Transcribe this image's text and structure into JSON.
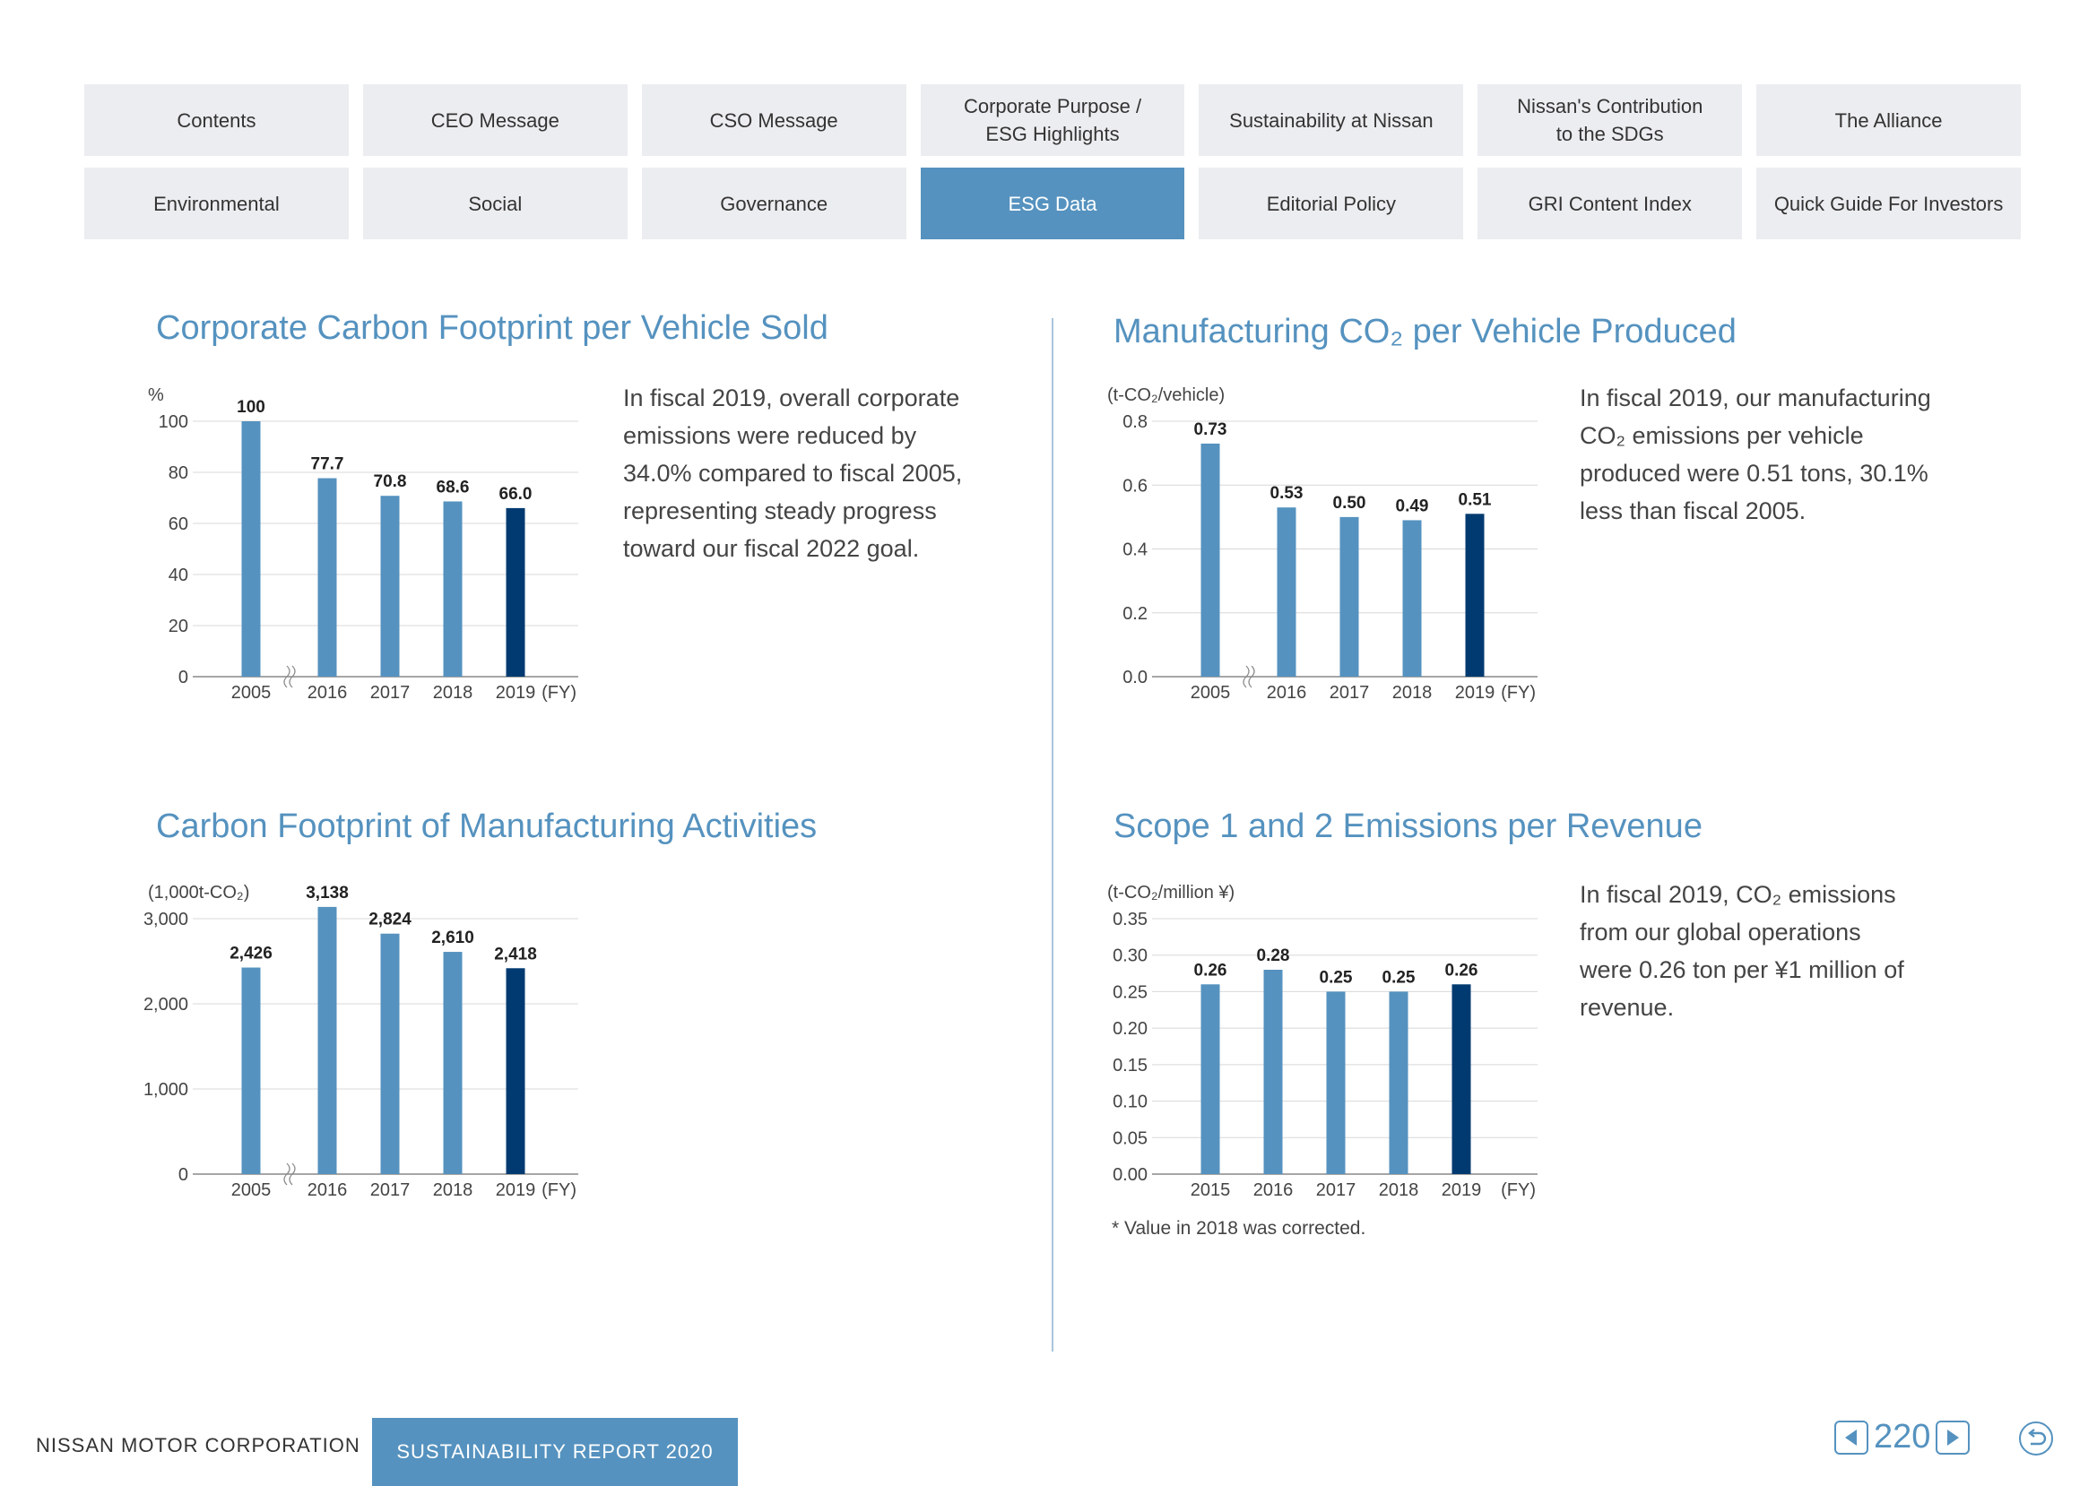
{
  "nav": {
    "row1": [
      "Contents",
      "CEO Message",
      "CSO Message",
      "Corporate Purpose /\nESG Highlights",
      "Sustainability at Nissan",
      "Nissan's Contribution\nto the SDGs",
      "The Alliance"
    ],
    "row2": [
      "Environmental",
      "Social",
      "Governance",
      "ESG Data",
      "Editorial Policy",
      "GRI Content Index",
      "Quick Guide For Investors"
    ],
    "active": "ESG Data"
  },
  "sections": {
    "s1": {
      "title": "Corporate Carbon Footprint per Vehicle Sold",
      "description": "In fiscal 2019, overall corporate\nemissions were reduced by\n34.0% compared to fiscal 2005,\nrepresenting steady progress\ntoward our fiscal 2022 goal."
    },
    "s2": {
      "title": "Manufacturing CO₂ per Vehicle Produced",
      "description": "In fiscal 2019, our manufacturing\nCO₂ emissions per vehicle\nproduced were 0.51 tons, 30.1%\nless than fiscal 2005."
    },
    "s3": {
      "title": "Carbon Footprint of Manufacturing Activities"
    },
    "s4": {
      "title": "Scope 1 and 2 Emissions per Revenue",
      "description": "In fiscal 2019, CO₂ emissions\nfrom our global operations\nwere 0.26 ton per ¥1 million of\nrevenue.",
      "footnote": "* Value in 2018 was corrected."
    }
  },
  "chart_data": [
    {
      "type": "bar",
      "unit": "%",
      "categories": [
        "2005",
        "2016",
        "2017",
        "2018",
        "2019"
      ],
      "values": [
        100,
        77.7,
        70.8,
        68.6,
        66.0
      ],
      "labels": [
        "100",
        "77.7",
        "70.8",
        "68.6",
        "66.0"
      ],
      "yticks": [
        "0",
        "20",
        "40",
        "60",
        "80",
        "100"
      ],
      "ylim": [
        0,
        100
      ],
      "xsuffix": "(FY)",
      "axis_break": true
    },
    {
      "type": "bar",
      "unit": "(t-CO₂/vehicle)",
      "categories": [
        "2005",
        "2016",
        "2017",
        "2018",
        "2019"
      ],
      "values": [
        0.73,
        0.53,
        0.5,
        0.49,
        0.51
      ],
      "labels": [
        "0.73",
        "0.53",
        "0.50",
        "0.49",
        "0.51"
      ],
      "yticks": [
        "0.0",
        "0.2",
        "0.4",
        "0.6",
        "0.8"
      ],
      "ylim": [
        0,
        0.8
      ],
      "xsuffix": "(FY)",
      "axis_break": true
    },
    {
      "type": "bar",
      "unit": "(1,000t-CO₂)",
      "categories": [
        "2005",
        "2016",
        "2017",
        "2018",
        "2019"
      ],
      "values": [
        2426,
        3138,
        2824,
        2610,
        2418
      ],
      "labels": [
        "2,426",
        "3,138",
        "2,824",
        "2,610",
        "2,418"
      ],
      "yticks": [
        "0",
        "1,000",
        "2,000",
        "3,000"
      ],
      "ylim": [
        0,
        3000
      ],
      "xsuffix": "(FY)",
      "axis_break": true
    },
    {
      "type": "bar",
      "unit": "(t-CO₂/million ¥)",
      "categories": [
        "2015",
        "2016",
        "2017",
        "2018",
        "2019"
      ],
      "values": [
        0.26,
        0.28,
        0.25,
        0.25,
        0.26
      ],
      "labels": [
        "0.26",
        "0.28",
        "0.25",
        "0.25",
        "0.26"
      ],
      "yticks": [
        "0.00",
        "0.05",
        "0.10",
        "0.15",
        "0.20",
        "0.25",
        "0.30",
        "0.35"
      ],
      "ylim": [
        0,
        0.35
      ],
      "xsuffix": "(FY)",
      "axis_break": false
    }
  ],
  "colors": {
    "accent": "#5592bf",
    "bar": "#5592bf",
    "bar_highlight": "#003a70",
    "nav_bg": "#ecedf0"
  },
  "footer": {
    "company": "NISSAN MOTOR CORPORATION",
    "report": "SUSTAINABILITY REPORT 2020",
    "page": "220"
  },
  "icons": {
    "prev": "triangle-left-icon",
    "next": "triangle-right-icon",
    "back": "return-arrow-icon"
  }
}
